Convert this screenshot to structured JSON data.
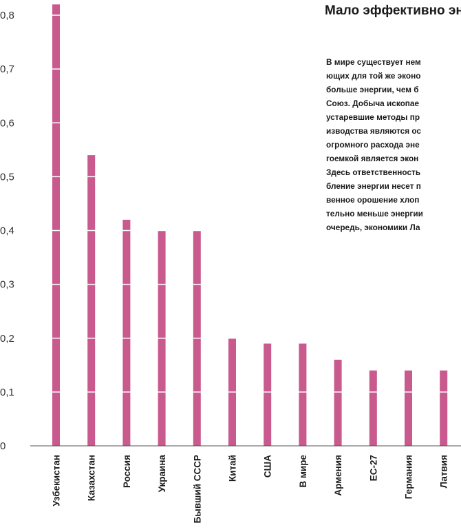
{
  "chart_data": {
    "type": "bar",
    "categories": [
      "Узбекистан",
      "Казахстан",
      "Россия",
      "Украина",
      "Бывший СССР",
      "Китай",
      "США",
      "В мире",
      "Армения",
      "ЕС-27",
      "Германия",
      "Латвия"
    ],
    "values": [
      0.82,
      0.54,
      0.42,
      0.4,
      0.4,
      0.2,
      0.19,
      0.19,
      0.16,
      0.14,
      0.14,
      0.14
    ],
    "title": "",
    "xlabel": "",
    "ylabel": "",
    "ylim": [
      0,
      0.8
    ],
    "yticks": [
      "0",
      "0,1",
      "0,2",
      "0,3",
      "0,4",
      "0,5",
      "0,6",
      "0,7",
      "0,8"
    ],
    "bar_color": "#c85a8e",
    "grid": "horizontal white lines across bars"
  },
  "annotation": {
    "title": "Мало эффективно энергии",
    "body_lines": [
      "В мире существует нем",
      "ющих для той же эконо",
      "больше энергии, чем б",
      "Союз. Добыча ископае",
      "устаревшие методы пр",
      "изводства являются ос",
      "огромного расхода эне",
      "гоемкой является экон",
      "Здесь ответственность",
      "бление энергии несет п",
      "венное орошение хлоп",
      "тельно меньше энергии",
      "очередь, экономики Ла"
    ]
  }
}
